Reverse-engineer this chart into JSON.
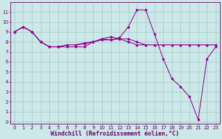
{
  "background_color": "#cce8e8",
  "grid_color": "#aacccc",
  "line_color": "#880088",
  "marker_color": "#990099",
  "xlabel": "Windchill (Refroidissement éolien,°C)",
  "xlabel_fontsize": 6.0,
  "xlim": [
    -0.5,
    23.5
  ],
  "ylim": [
    -0.2,
    12.0
  ],
  "xticks": [
    0,
    1,
    2,
    3,
    4,
    5,
    6,
    7,
    8,
    9,
    10,
    11,
    12,
    13,
    14,
    15,
    16,
    17,
    18,
    19,
    20,
    21,
    22,
    23
  ],
  "yticks": [
    0,
    1,
    2,
    3,
    4,
    5,
    6,
    7,
    8,
    9,
    10,
    11
  ],
  "line1_x": [
    0,
    1,
    2,
    3,
    4,
    5,
    6,
    7,
    8,
    9,
    10,
    11,
    12,
    13,
    14,
    15,
    16,
    17,
    18,
    19,
    20,
    21,
    22,
    23
  ],
  "line1_y": [
    9.0,
    9.5,
    9.0,
    8.0,
    7.5,
    7.5,
    7.5,
    7.5,
    7.5,
    8.0,
    8.3,
    8.2,
    8.4,
    9.5,
    11.2,
    11.2,
    8.8,
    6.3,
    4.3,
    3.5,
    2.5,
    0.2,
    6.3,
    7.5
  ],
  "line2_x": [
    0,
    1,
    2,
    3,
    4,
    5,
    6,
    7,
    8,
    9,
    10,
    11,
    12,
    13,
    14,
    15,
    16,
    17,
    18,
    19,
    20,
    21,
    22,
    23
  ],
  "line2_y": [
    9.0,
    9.5,
    9.0,
    8.0,
    7.5,
    7.5,
    7.7,
    7.7,
    7.8,
    8.0,
    8.2,
    8.2,
    8.3,
    8.3,
    8.0,
    7.7,
    7.7,
    7.7,
    7.7,
    7.7,
    7.7,
    7.7,
    7.7,
    7.7
  ],
  "line3_x": [
    0,
    1,
    2,
    3,
    4,
    5,
    6,
    7,
    8,
    9,
    10,
    11,
    12,
    13,
    14,
    15,
    16,
    17,
    18,
    19,
    20,
    21,
    22,
    23
  ],
  "line3_y": [
    9.0,
    9.5,
    9.0,
    8.0,
    7.5,
    7.5,
    7.7,
    7.7,
    7.9,
    8.0,
    8.3,
    8.5,
    8.3,
    8.0,
    7.7,
    7.7,
    7.7,
    7.7,
    7.7,
    7.7,
    7.7,
    7.7,
    7.7,
    7.7
  ]
}
